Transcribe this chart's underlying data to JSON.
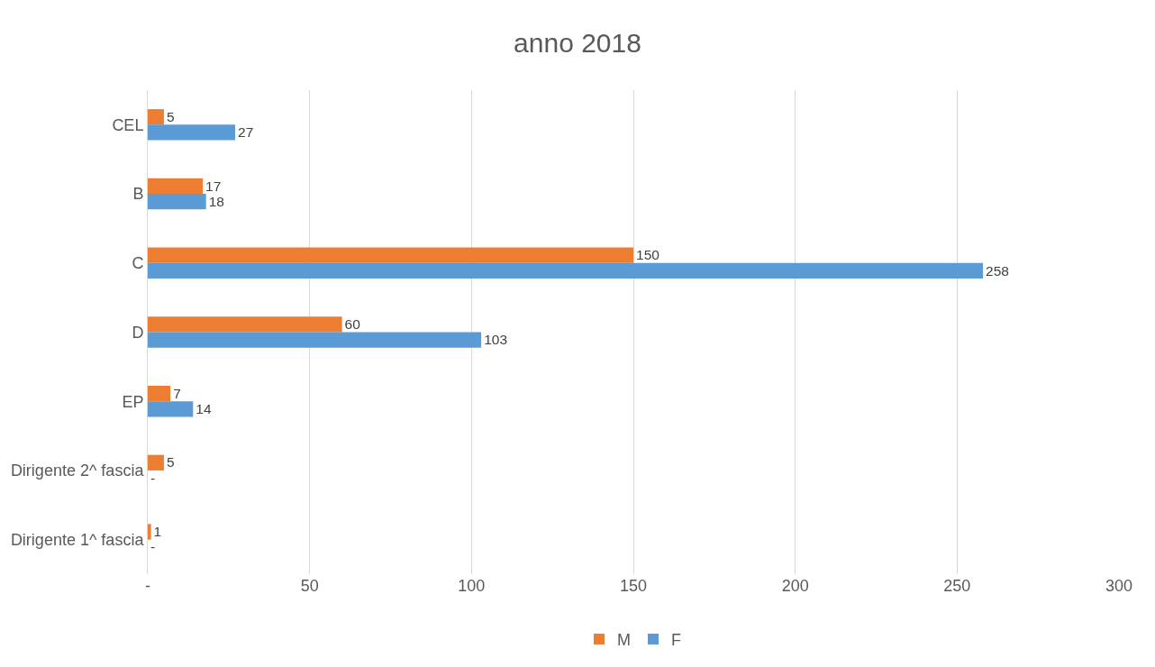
{
  "chart_data": {
    "type": "bar",
    "title": "anno 2018",
    "orientation": "horizontal",
    "categories": [
      "CEL",
      "B",
      "C",
      "D",
      "EP",
      "Dirigente 2^ fascia",
      "Dirigente 1^ fascia"
    ],
    "series": [
      {
        "name": "M",
        "color": "#ed7d31",
        "values": [
          5,
          17,
          150,
          60,
          7,
          5,
          1
        ],
        "value_labels": [
          "5",
          "17",
          "150",
          "60",
          "7",
          "5",
          "1"
        ]
      },
      {
        "name": "F",
        "color": "#5b9bd5",
        "values": [
          27,
          18,
          258,
          103,
          14,
          0,
          0
        ],
        "value_labels": [
          "27",
          "18",
          "258",
          "103",
          "14",
          "-",
          "-"
        ]
      }
    ],
    "xlim": [
      0,
      300
    ],
    "xticks": [
      {
        "value": 0,
        "label": "-"
      },
      50,
      100,
      150,
      200,
      250,
      300
    ],
    "grid": "x",
    "legend": "bottom"
  }
}
